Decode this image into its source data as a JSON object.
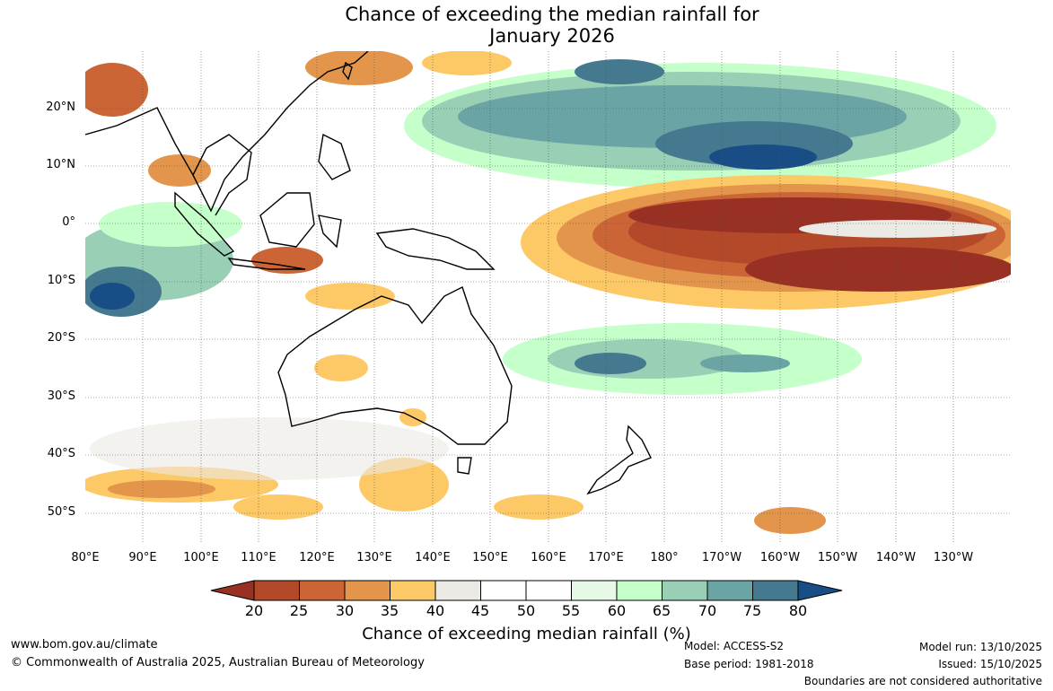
{
  "title": {
    "line1": "Chance of exceeding the median rainfall for",
    "line2": "January 2026"
  },
  "map": {
    "lon_range": [
      80,
      235
    ],
    "lat_range": [
      -55,
      30
    ],
    "lat_ticks": [
      "20°N",
      "10°N",
      "0°",
      "10°S",
      "20°S",
      "30°S",
      "40°S",
      "50°S"
    ],
    "lon_ticks": [
      "80°E",
      "90°E",
      "100°E",
      "110°E",
      "120°E",
      "130°E",
      "140°E",
      "150°E",
      "160°E",
      "170°E",
      "180°",
      "170°W",
      "160°W",
      "150°W",
      "140°W",
      "130°W"
    ]
  },
  "colorbar": {
    "title": "Chance of exceeding median rainfall (%)",
    "labels": [
      "20",
      "25",
      "30",
      "35",
      "40",
      "45",
      "50",
      "55",
      "60",
      "65",
      "70",
      "75",
      "80"
    ],
    "colors": [
      "#983123",
      "#b4492a",
      "#cc6535",
      "#e2954b",
      "#fdc866",
      "#eceae4",
      "#ffffff",
      "#ffffff",
      "#e6f8e6",
      "#c5ffca",
      "#98cfb5",
      "#6ba4a4",
      "#44798f",
      "#184e85"
    ]
  },
  "footer": {
    "website": "www.bom.gov.au/climate",
    "copyright": "© Commonwealth of Australia 2025, Australian Bureau of Meteorology",
    "model": "Model: ACCESS-S2",
    "base_period": "Base period: 1981-2018",
    "model_run": "Model run: 13/10/2025",
    "issued": "Issued: 15/10/2025",
    "disclaimer": "Boundaries are not considered authoritative"
  }
}
